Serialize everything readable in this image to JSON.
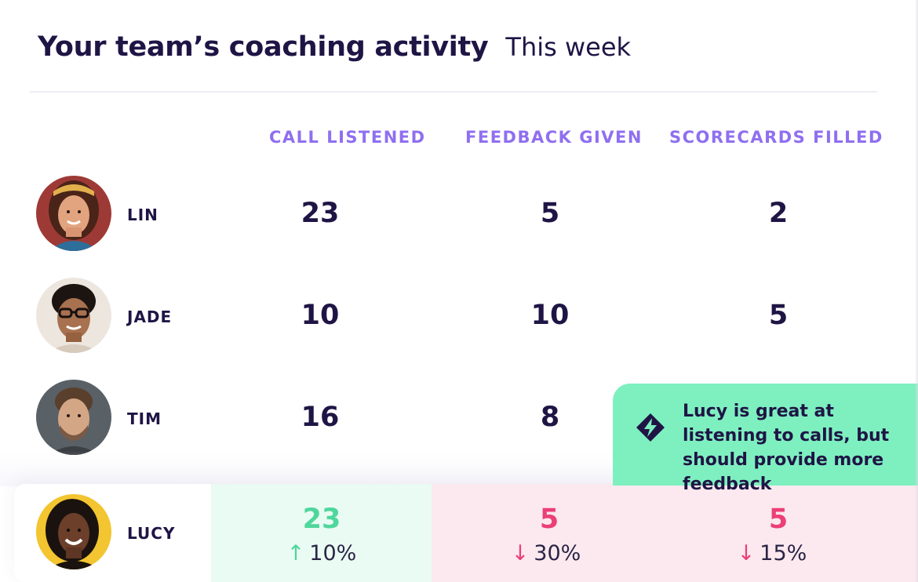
{
  "header": {
    "title": "Your team’s coaching activity",
    "period": "This week"
  },
  "columns": [
    "CALL LISTENED",
    "FEEDBACK GIVEN",
    "SCORECARDS FILLED"
  ],
  "rows": [
    {
      "name": "LIN",
      "calls": "23",
      "feedback": "5",
      "scorecards": "2"
    },
    {
      "name": "JADE",
      "calls": "10",
      "feedback": "10",
      "scorecards": "5"
    },
    {
      "name": "TIM",
      "calls": "16",
      "feedback": "8",
      "scorecards": ""
    }
  ],
  "highlight": {
    "name": "LUCY",
    "calls": {
      "value": "23",
      "delta": "10%",
      "direction": "up",
      "color": "#4fd69c"
    },
    "feedback": {
      "value": "5",
      "delta": "30%",
      "direction": "down",
      "color": "#ec3f77"
    },
    "scorecards": {
      "value": "5",
      "delta": "15%",
      "direction": "down",
      "color": "#ec3f77"
    }
  },
  "insight": {
    "icon": "lightning-diamond-icon",
    "text": "Lucy is great at listening to calls, but should provide more feedback"
  },
  "colors": {
    "accent": "#8f6ff0",
    "text": "#1f1545",
    "positive": "#4fd69c",
    "negative": "#ec3f77",
    "callout_bg": "#7ef0c0"
  }
}
